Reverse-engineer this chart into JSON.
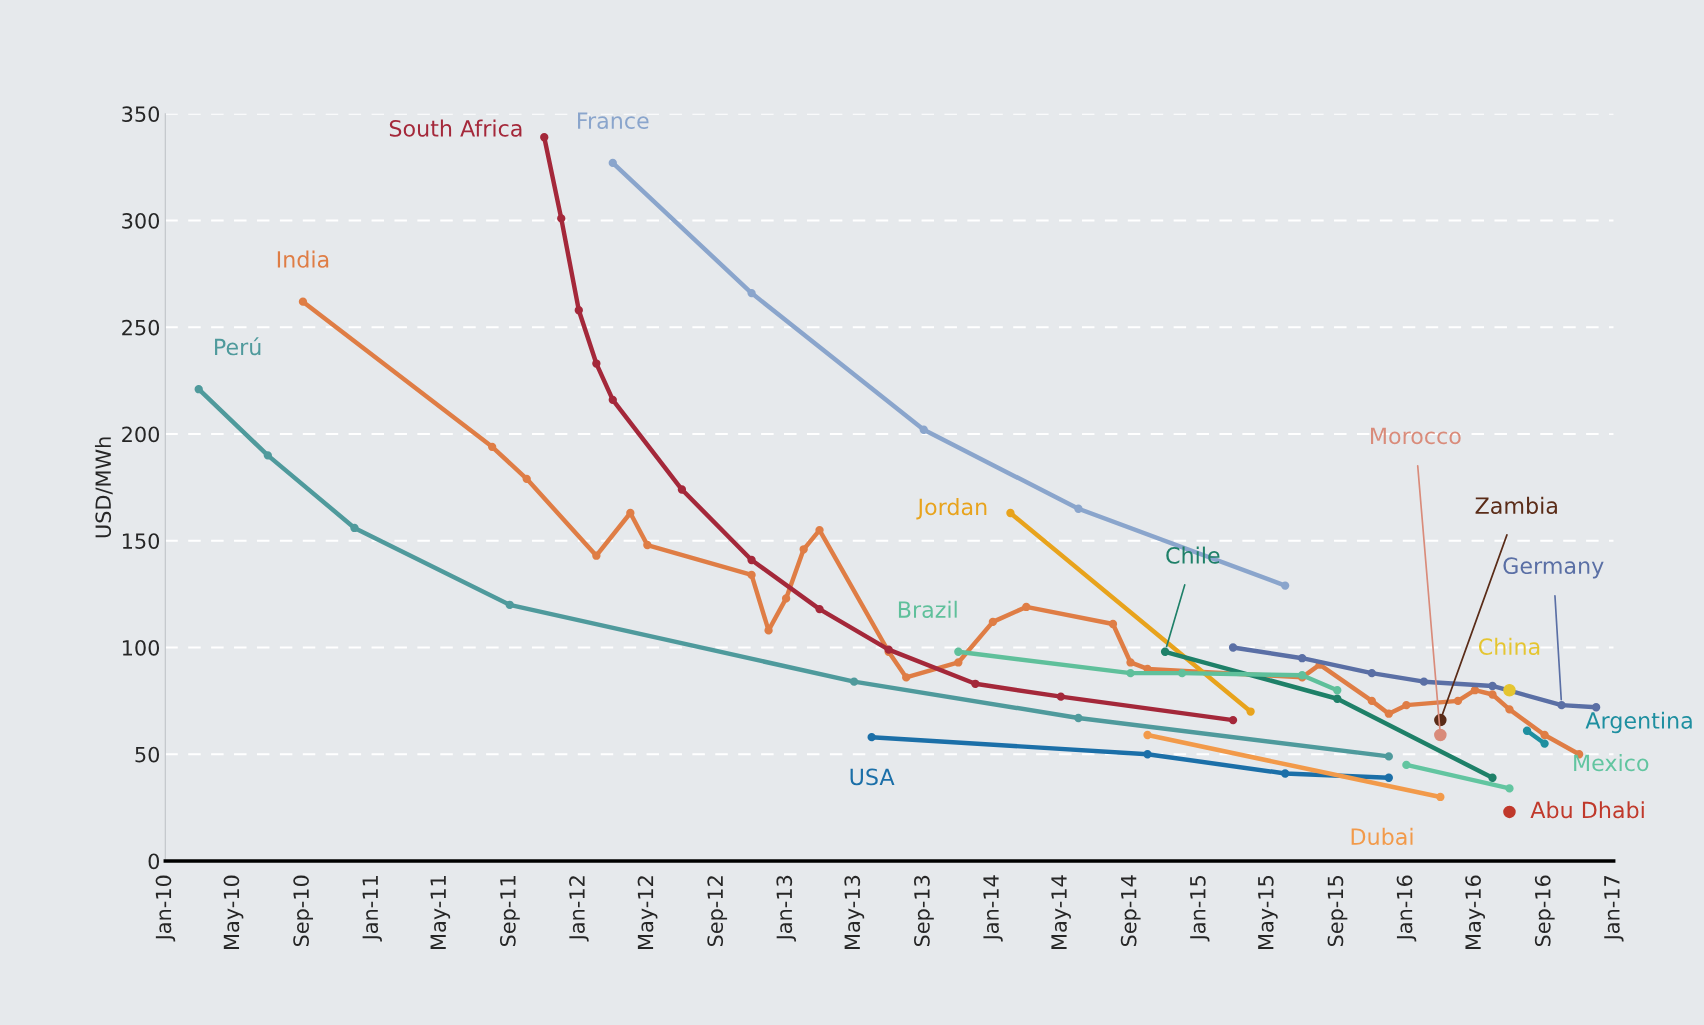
{
  "chart_data": {
    "type": "line",
    "ylabel": "USD/MWh",
    "xlim": [
      "2010-01",
      "2017-01"
    ],
    "xticks": [
      {
        "value": "2010-01",
        "label": "Jan-10"
      },
      {
        "value": "2010-05",
        "label": "May-10"
      },
      {
        "value": "2010-09",
        "label": "Sep-10"
      },
      {
        "value": "2011-01",
        "label": "Jan-11"
      },
      {
        "value": "2011-05",
        "label": "May-11"
      },
      {
        "value": "2011-09",
        "label": "Sep-11"
      },
      {
        "value": "2012-01",
        "label": "Jan-12"
      },
      {
        "value": "2012-05",
        "label": "May-12"
      },
      {
        "value": "2012-09",
        "label": "Sep-12"
      },
      {
        "value": "2013-01",
        "label": "Jan-13"
      },
      {
        "value": "2013-05",
        "label": "May-13"
      },
      {
        "value": "2013-09",
        "label": "Sep-13"
      },
      {
        "value": "2014-01",
        "label": "Jan-14"
      },
      {
        "value": "2014-05",
        "label": "May-14"
      },
      {
        "value": "2014-09",
        "label": "Sep-14"
      },
      {
        "value": "2015-01",
        "label": "Jan-15"
      },
      {
        "value": "2015-05",
        "label": "May-15"
      },
      {
        "value": "2015-09",
        "label": "Sep-15"
      },
      {
        "value": "2016-01",
        "label": "Jan-16"
      },
      {
        "value": "2016-05",
        "label": "May-16"
      },
      {
        "value": "2016-09",
        "label": "Sep-16"
      },
      {
        "value": "2017-01",
        "label": "Jan-17"
      }
    ],
    "ylim": [
      0,
      350
    ],
    "yticks": [
      0,
      50,
      100,
      150,
      200,
      250,
      300,
      350
    ],
    "grid": "y",
    "legend": false,
    "marker": "circle",
    "line_style": "solid",
    "series": [
      {
        "name": "Perú",
        "color": "#4f9a9c",
        "x": [
          "2010-03",
          "2010-07",
          "2010-12",
          "2011-09",
          "2013-05",
          "2014-06",
          "2015-12"
        ],
        "values": [
          221,
          190,
          156,
          120,
          84,
          67,
          49
        ]
      },
      {
        "name": "India",
        "color": "#df7d45",
        "x": [
          "2010-09",
          "2011-08",
          "2011-10",
          "2012-02",
          "2012-04",
          "2012-05",
          "2012-11",
          "2012-12",
          "2013-01",
          "2013-02",
          "2013-03",
          "2013-07",
          "2013-08",
          "2013-11",
          "2014-01",
          "2014-03",
          "2014-08",
          "2014-09",
          "2014-10",
          "2015-07",
          "2015-08",
          "2015-11",
          "2015-12",
          "2016-01",
          "2016-04",
          "2016-05",
          "2016-06",
          "2016-07",
          "2016-09",
          "2016-11"
        ],
        "values": [
          262,
          194,
          179,
          143,
          163,
          148,
          134,
          108,
          123,
          146,
          155,
          98,
          86,
          93,
          112,
          119,
          111,
          93,
          90,
          86,
          92,
          75,
          69,
          73,
          75,
          80,
          78,
          71,
          59,
          50
        ]
      },
      {
        "name": "South Africa",
        "color": "#a4283a",
        "x": [
          "2011-11",
          "2011-12",
          "2012-01",
          "2012-02",
          "2012-03",
          "2012-07",
          "2012-11",
          "2013-03",
          "2013-07",
          "2013-12",
          "2014-05",
          "2015-03"
        ],
        "values": [
          339,
          301,
          258,
          233,
          216,
          174,
          141,
          118,
          99,
          83,
          77,
          66
        ]
      },
      {
        "name": "France",
        "color": "#8aa5cc",
        "x": [
          "2012-03",
          "2012-11",
          "2013-09",
          "2014-06",
          "2015-06"
        ],
        "values": [
          327,
          266,
          202,
          165,
          129
        ]
      },
      {
        "name": "Jordan",
        "color": "#e8a31c",
        "x": [
          "2014-02",
          "2015-04"
        ],
        "values": [
          163,
          70
        ]
      },
      {
        "name": "Chile",
        "color": "#1e8068",
        "x": [
          "2014-11",
          "2015-09",
          "2016-06"
        ],
        "values": [
          98,
          76,
          39
        ]
      },
      {
        "name": "Brazil",
        "color": "#5fc09b",
        "x": [
          "2013-11",
          "2014-09",
          "2014-12",
          "2015-07",
          "2015-09"
        ],
        "values": [
          98,
          88,
          88,
          87,
          80
        ]
      },
      {
        "name": "Germany",
        "color": "#5a6fa5",
        "x": [
          "2015-03",
          "2015-07",
          "2015-11",
          "2016-02",
          "2016-06",
          "2016-10",
          "2016-12"
        ],
        "values": [
          100,
          95,
          88,
          84,
          82,
          73,
          72
        ]
      },
      {
        "name": "Morocco",
        "color": "#d98b7a",
        "x": [
          "2016-03"
        ],
        "values": [
          59
        ]
      },
      {
        "name": "Zambia",
        "color": "#5a2c18",
        "x": [
          "2016-03"
        ],
        "values": [
          66
        ]
      },
      {
        "name": "China",
        "color": "#e5c530",
        "x": [
          "2016-07"
        ],
        "values": [
          80
        ]
      },
      {
        "name": "Abu Dhabi",
        "color": "#c0392b",
        "x": [
          "2016-07"
        ],
        "values": [
          23
        ]
      },
      {
        "name": "Argentina",
        "color": "#1e8fa0",
        "x": [
          "2016-08",
          "2016-09"
        ],
        "values": [
          61,
          55
        ]
      },
      {
        "name": "Mexico",
        "color": "#62c5a0",
        "x": [
          "2016-01",
          "2016-07"
        ],
        "values": [
          45,
          34
        ]
      },
      {
        "name": "USA",
        "color": "#1b6fa8",
        "x": [
          "2013-06",
          "2014-10",
          "2015-06",
          "2015-12"
        ],
        "values": [
          58,
          50,
          41,
          39
        ]
      },
      {
        "name": "Dubai",
        "color": "#f29a4a",
        "x": [
          "2014-10",
          "2016-03"
        ],
        "values": [
          59,
          30
        ]
      }
    ]
  }
}
